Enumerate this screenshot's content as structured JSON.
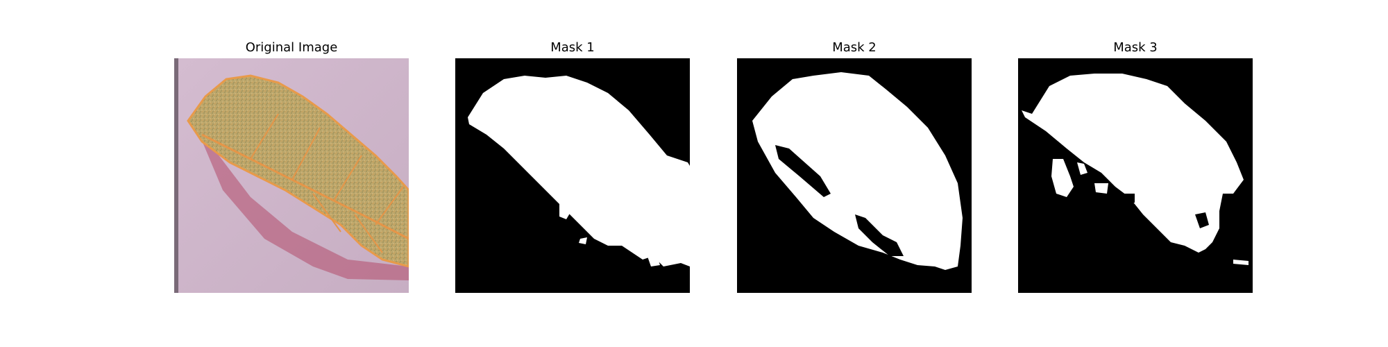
{
  "figure": {
    "panels": [
      {
        "title": "Original Image"
      },
      {
        "title": "Mask 1"
      },
      {
        "title": "Mask 2"
      },
      {
        "title": "Mask 3"
      }
    ]
  },
  "colors": {
    "mask_background": "#000000",
    "mask_foreground": "#ffffff",
    "photo_background": "#cdb2c8",
    "leaf_fill": "#c8a86a",
    "leaf_edge": "#e89a4a"
  }
}
